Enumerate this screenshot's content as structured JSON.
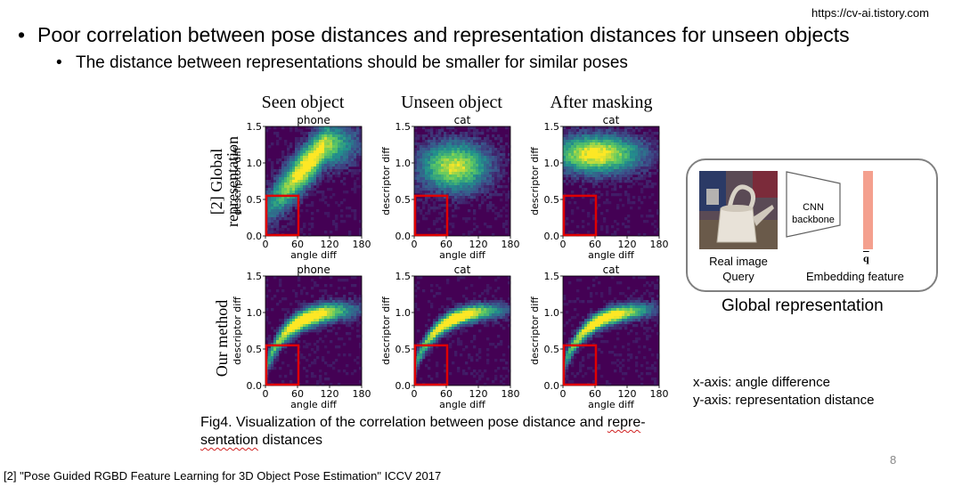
{
  "slide": {
    "url": "https://cv-ai.tistory.com",
    "bullet_main": "Poor correlation between pose distances and representation distances for unseen objects",
    "bullet_sub": "The distance between representations should be smaller for similar poses",
    "page_number": "8",
    "citation": "[2] \"Pose Guided RGBD Feature Learning for 3D Object Pose Estimation\" ICCV 2017",
    "bullet_char": "•"
  },
  "figure": {
    "column_headers": [
      "Seen object",
      "Unseen object",
      "After masking"
    ],
    "row_labels": [
      "[2] Global representation",
      "Our method"
    ],
    "row_label_lines": [
      [
        "[2] Global",
        "representation"
      ],
      [
        "Our method"
      ]
    ],
    "caption_part1": "Fig4. Visualization of the correlation between pose distance and ",
    "caption_wavy1": "repre",
    "caption_dash": "-",
    "caption_wavy2": "sentation",
    "caption_part2": " distances",
    "axis_note_x": "x-axis: angle difference",
    "axis_note_y": "y-axis: representation distance"
  },
  "chart_data": [
    {
      "type": "heatmap",
      "title": "phone",
      "xlabel": "angle diff",
      "ylabel": "descriptor diff",
      "xlim": [
        0,
        180
      ],
      "ylim": [
        0,
        1.5
      ],
      "xticks": [
        "0",
        "60",
        "120",
        "180"
      ],
      "yticks": [
        "0.0",
        "0.5",
        "1.0",
        "1.5"
      ],
      "highlight_box": {
        "x": [
          0,
          60
        ],
        "y": [
          0,
          0.55
        ],
        "color": "#e00000"
      },
      "colormap": [
        "#440154",
        "#3b528b",
        "#21918c",
        "#5ec962",
        "#fde725"
      ]
    },
    {
      "type": "heatmap",
      "title": "cat",
      "xlabel": "angle diff",
      "ylabel": "descriptor diff",
      "xlim": [
        0,
        180
      ],
      "ylim": [
        0,
        1.5
      ],
      "xticks": [
        "0",
        "60",
        "120",
        "180"
      ],
      "yticks": [
        "0.0",
        "0.5",
        "1.0",
        "1.5"
      ],
      "highlight_box": {
        "x": [
          0,
          60
        ],
        "y": [
          0,
          0.55
        ],
        "color": "#e00000"
      }
    },
    {
      "type": "heatmap",
      "title": "cat",
      "xlabel": "angle diff",
      "ylabel": "descriptor diff",
      "xlim": [
        0,
        180
      ],
      "ylim": [
        0,
        1.5
      ],
      "xticks": [
        "0",
        "60",
        "120",
        "180"
      ],
      "yticks": [
        "0.0",
        "0.5",
        "1.0",
        "1.5"
      ],
      "highlight_box": {
        "x": [
          0,
          60
        ],
        "y": [
          0,
          0.55
        ],
        "color": "#e00000"
      }
    },
    {
      "type": "heatmap",
      "title": "phone",
      "xlabel": "angle diff",
      "ylabel": "descriptor diff",
      "xlim": [
        0,
        180
      ],
      "ylim": [
        0,
        1.5
      ],
      "xticks": [
        "0",
        "60",
        "120",
        "180"
      ],
      "yticks": [
        "0.0",
        "0.5",
        "1.0",
        "1.5"
      ],
      "highlight_box": {
        "x": [
          0,
          60
        ],
        "y": [
          0,
          0.55
        ],
        "color": "#e00000"
      }
    },
    {
      "type": "heatmap",
      "title": "cat",
      "xlabel": "angle diff",
      "ylabel": "descriptor diff",
      "xlim": [
        0,
        180
      ],
      "ylim": [
        0,
        1.5
      ],
      "xticks": [
        "0",
        "60",
        "120",
        "180"
      ],
      "yticks": [
        "0.0",
        "0.5",
        "1.0",
        "1.5"
      ],
      "highlight_box": {
        "x": [
          0,
          60
        ],
        "y": [
          0,
          0.55
        ],
        "color": "#e00000"
      }
    },
    {
      "type": "heatmap",
      "title": "cat",
      "xlabel": "angle diff",
      "ylabel": "descriptor diff",
      "xlim": [
        0,
        180
      ],
      "ylim": [
        0,
        1.5
      ],
      "xticks": [
        "0",
        "60",
        "120",
        "180"
      ],
      "yticks": [
        "0.0",
        "0.5",
        "1.0",
        "1.5"
      ],
      "highlight_box": {
        "x": [
          0,
          60
        ],
        "y": [
          0,
          0.55
        ],
        "color": "#e00000"
      }
    }
  ],
  "global_rep": {
    "title": "Global representation",
    "image_label_1": "Real image",
    "image_label_2": "Query",
    "cnn_label_1": "CNN",
    "cnn_label_2": "backbone",
    "embed_symbol": "q",
    "embed_label": "Embedding feature",
    "embed_color": "#f4a08e",
    "border_color": "#808080"
  }
}
